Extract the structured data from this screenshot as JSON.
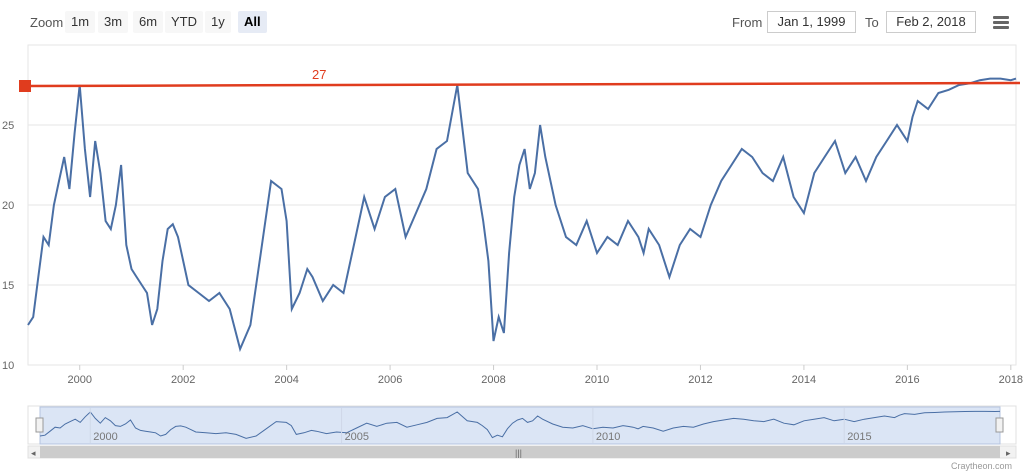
{
  "toolbar": {
    "zoom_label": "Zoom",
    "zoom_buttons": [
      "1m",
      "3m",
      "6m",
      "YTD",
      "1y",
      "All"
    ],
    "active_zoom": "All",
    "from_label": "From",
    "from_value": "Jan 1, 1999",
    "to_label": "To",
    "to_value": "Feb 2, 2018",
    "menu_icon": "hamburger-menu-icon"
  },
  "credits": "Craytheon.com",
  "colors": {
    "series": "#4a6fa5",
    "threshold": "#e03c1e",
    "navigator_fill": "#dbe5f5",
    "grid": "#e6e6e6"
  },
  "chart_data": {
    "type": "line",
    "x_ticks": [
      "2000",
      "2002",
      "2004",
      "2006",
      "2008",
      "2010",
      "2012",
      "2014",
      "2016",
      "2018"
    ],
    "y_ticks": [
      "10",
      "15",
      "20",
      "25"
    ],
    "ylim": [
      10,
      30
    ],
    "xlim": [
      1999.0,
      2018.1
    ],
    "threshold": {
      "value": 27.5,
      "label": "27"
    },
    "navigator_ticks": [
      "2000",
      "2005",
      "2010",
      "2015"
    ],
    "series": [
      {
        "x": [
          1999.0,
          1999.1,
          1999.2,
          1999.3,
          1999.4,
          1999.5,
          1999.6,
          1999.7,
          1999.8,
          1999.9,
          2000.0,
          2000.1,
          2000.2,
          2000.3,
          2000.4,
          2000.5,
          2000.6,
          2000.7,
          2000.8,
          2000.9,
          2001.0,
          2001.1,
          2001.2,
          2001.3,
          2001.4,
          2001.5,
          2001.6,
          2001.7,
          2001.8,
          2001.9,
          2002.0,
          2002.1,
          2002.3,
          2002.5,
          2002.7,
          2002.9,
          2003.1,
          2003.3,
          2003.5,
          2003.7,
          2003.9,
          2004.0,
          2004.1,
          2004.25,
          2004.4,
          2004.5,
          2004.7,
          2004.9,
          2005.1,
          2005.3,
          2005.5,
          2005.7,
          2005.9,
          2006.1,
          2006.3,
          2006.5,
          2006.7,
          2006.9,
          2007.1,
          2007.3,
          2007.5,
          2007.7,
          2007.8,
          2007.9,
          2008.0,
          2008.1,
          2008.2,
          2008.3,
          2008.4,
          2008.5,
          2008.6,
          2008.7,
          2008.8,
          2008.9,
          2009.0,
          2009.2,
          2009.4,
          2009.6,
          2009.8,
          2010.0,
          2010.2,
          2010.4,
          2010.6,
          2010.7,
          2010.8,
          2010.9,
          2011.0,
          2011.2,
          2011.4,
          2011.6,
          2011.8,
          2012.0,
          2012.2,
          2012.4,
          2012.6,
          2012.8,
          2013.0,
          2013.2,
          2013.4,
          2013.6,
          2013.8,
          2014.0,
          2014.2,
          2014.4,
          2014.6,
          2014.8,
          2015.0,
          2015.2,
          2015.4,
          2015.6,
          2015.8,
          2016.0,
          2016.1,
          2016.2,
          2016.4,
          2016.6,
          2016.8,
          2017.0,
          2017.2,
          2017.4,
          2017.6,
          2017.8,
          2018.0,
          2018.1
        ],
        "y": [
          12.5,
          13.0,
          15.5,
          18.0,
          17.5,
          20.0,
          21.5,
          23.0,
          21.0,
          24.5,
          27.5,
          23.5,
          20.5,
          24.0,
          22.0,
          19.0,
          18.5,
          20.0,
          22.5,
          17.5,
          16.0,
          15.5,
          15.0,
          14.5,
          12.5,
          13.5,
          16.5,
          18.5,
          18.8,
          18.0,
          16.5,
          15.0,
          14.5,
          14.0,
          14.5,
          13.5,
          11.0,
          12.5,
          17.0,
          21.5,
          21.0,
          19.0,
          13.5,
          14.5,
          16.0,
          15.5,
          14.0,
          15.0,
          14.5,
          17.5,
          20.5,
          18.5,
          20.5,
          21.0,
          18.0,
          19.5,
          21.0,
          23.5,
          24.0,
          27.5,
          22.0,
          21.0,
          19.0,
          16.5,
          11.5,
          13.0,
          12.0,
          17.0,
          20.5,
          22.5,
          23.5,
          21.0,
          22.0,
          25.0,
          23.0,
          20.0,
          18.0,
          17.5,
          19.0,
          17.0,
          18.0,
          17.5,
          19.0,
          18.5,
          18.0,
          17.0,
          18.5,
          17.5,
          15.5,
          17.5,
          18.5,
          18.0,
          20.0,
          21.5,
          22.5,
          23.5,
          23.0,
          22.0,
          21.5,
          23.0,
          20.5,
          19.5,
          22.0,
          23.0,
          24.0,
          22.0,
          23.0,
          21.5,
          23.0,
          24.0,
          25.0,
          24.0,
          25.5,
          26.5,
          26.0,
          27.0,
          27.2,
          27.5,
          27.6,
          27.8,
          27.9,
          27.9,
          27.8,
          27.9
        ]
      }
    ]
  }
}
